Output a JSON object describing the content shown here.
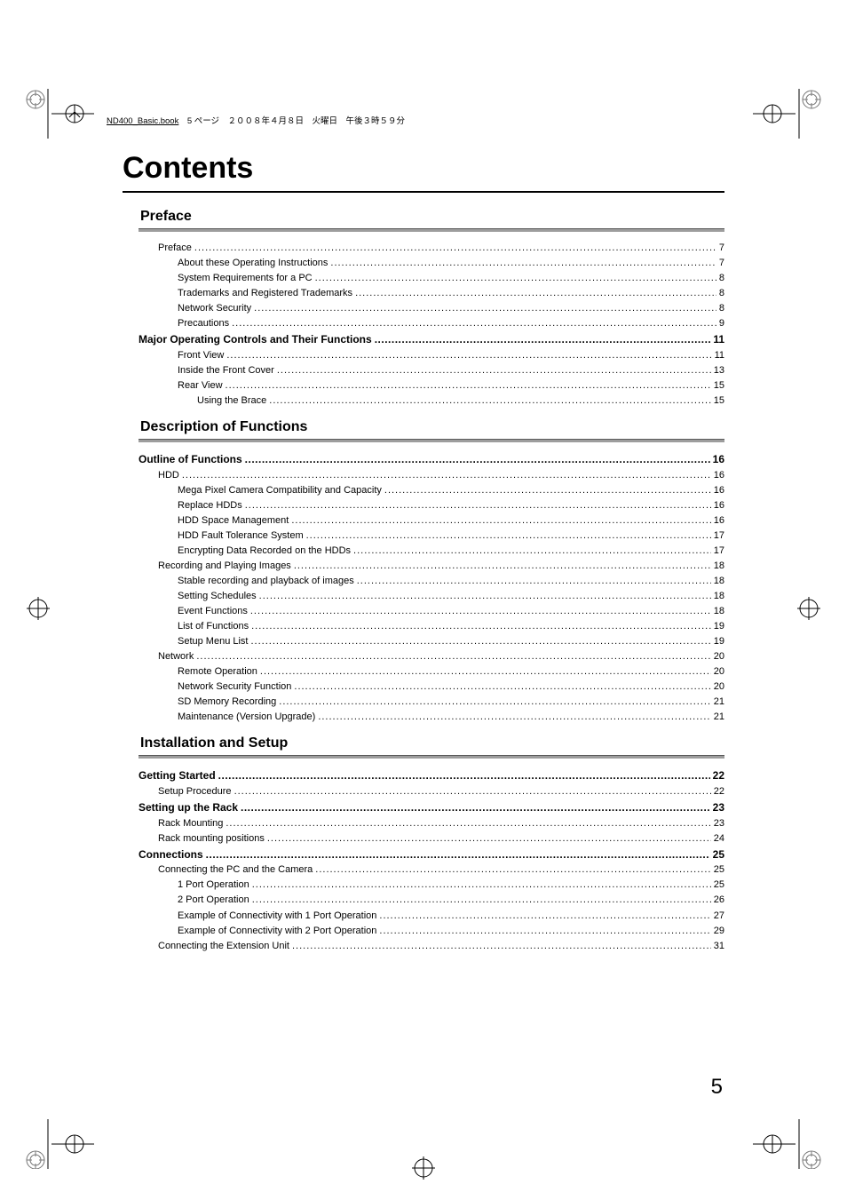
{
  "header_line": {
    "doc_name": "ND400_Basic.book",
    "rest": "　5 ページ　２００８年４月８日　火曜日　午後３時５９分"
  },
  "title": "Contents",
  "page_number": "5",
  "sections": [
    {
      "heading": "Preface",
      "rows": [
        {
          "label": "Preface",
          "page": "7",
          "indent": 1,
          "bold": false
        },
        {
          "label": "About these Operating Instructions",
          "page": "7",
          "indent": 2,
          "bold": false
        },
        {
          "label": "System Requirements for a PC",
          "page": "8",
          "indent": 2,
          "bold": false
        },
        {
          "label": "Trademarks and Registered Trademarks",
          "page": "8",
          "indent": 2,
          "bold": false
        },
        {
          "label": "Network Security",
          "page": "8",
          "indent": 2,
          "bold": false
        },
        {
          "label": "Precautions",
          "page": "9",
          "indent": 2,
          "bold": false
        },
        {
          "label": "Major Operating Controls and Their Functions",
          "page": "11",
          "indent": 0,
          "bold": true
        },
        {
          "label": "Front View",
          "page": "11",
          "indent": 2,
          "bold": false
        },
        {
          "label": "Inside the Front Cover",
          "page": "13",
          "indent": 2,
          "bold": false
        },
        {
          "label": "Rear View",
          "page": "15",
          "indent": 2,
          "bold": false
        },
        {
          "label": "Using the Brace",
          "page": "15",
          "indent": 3,
          "bold": false
        }
      ]
    },
    {
      "heading": "Description of Functions",
      "rows": [
        {
          "label": "Outline of Functions",
          "page": "16",
          "indent": 0,
          "bold": true
        },
        {
          "label": "HDD",
          "page": "16",
          "indent": 1,
          "bold": false
        },
        {
          "label": "Mega Pixel Camera Compatibility and Capacity",
          "page": "16",
          "indent": 2,
          "bold": false
        },
        {
          "label": "Replace HDDs",
          "page": "16",
          "indent": 2,
          "bold": false
        },
        {
          "label": "HDD Space Management",
          "page": "16",
          "indent": 2,
          "bold": false
        },
        {
          "label": "HDD Fault Tolerance System",
          "page": "17",
          "indent": 2,
          "bold": false
        },
        {
          "label": "Encrypting Data Recorded on the HDDs",
          "page": "17",
          "indent": 2,
          "bold": false
        },
        {
          "label": "Recording and Playing Images",
          "page": "18",
          "indent": 1,
          "bold": false
        },
        {
          "label": "Stable recording and playback of images",
          "page": "18",
          "indent": 2,
          "bold": false
        },
        {
          "label": "Setting Schedules",
          "page": "18",
          "indent": 2,
          "bold": false
        },
        {
          "label": "Event Functions",
          "page": "18",
          "indent": 2,
          "bold": false
        },
        {
          "label": "List of Functions",
          "page": "19",
          "indent": 2,
          "bold": false
        },
        {
          "label": "Setup Menu List",
          "page": "19",
          "indent": 2,
          "bold": false
        },
        {
          "label": "Network",
          "page": "20",
          "indent": 1,
          "bold": false
        },
        {
          "label": "Remote Operation",
          "page": "20",
          "indent": 2,
          "bold": false
        },
        {
          "label": "Network Security Function",
          "page": "20",
          "indent": 2,
          "bold": false
        },
        {
          "label": "SD Memory Recording",
          "page": "21",
          "indent": 2,
          "bold": false
        },
        {
          "label": "Maintenance (Version Upgrade)",
          "page": "21",
          "indent": 2,
          "bold": false
        }
      ]
    },
    {
      "heading": "Installation and Setup",
      "rows": [
        {
          "label": "Getting Started",
          "page": "22",
          "indent": 0,
          "bold": true
        },
        {
          "label": "Setup Procedure",
          "page": "22",
          "indent": 1,
          "bold": false
        },
        {
          "label": "Setting up the Rack",
          "page": "23",
          "indent": 0,
          "bold": true
        },
        {
          "label": "Rack Mounting",
          "page": "23",
          "indent": 1,
          "bold": false
        },
        {
          "label": "Rack mounting positions",
          "page": "24",
          "indent": 1,
          "bold": false
        },
        {
          "label": "Connections",
          "page": "25",
          "indent": 0,
          "bold": true
        },
        {
          "label": "Connecting the PC and the Camera",
          "page": "25",
          "indent": 1,
          "bold": false
        },
        {
          "label": "1 Port Operation",
          "page": "25",
          "indent": 2,
          "bold": false
        },
        {
          "label": "2 Port Operation",
          "page": "26",
          "indent": 2,
          "bold": false
        },
        {
          "label": "Example of Connectivity with 1 Port Operation",
          "page": "27",
          "indent": 2,
          "bold": false
        },
        {
          "label": "Example of Connectivity with 2 Port Operation",
          "page": "29",
          "indent": 2,
          "bold": false
        },
        {
          "label": "Connecting the Extension Unit",
          "page": "31",
          "indent": 1,
          "bold": false
        }
      ]
    }
  ]
}
